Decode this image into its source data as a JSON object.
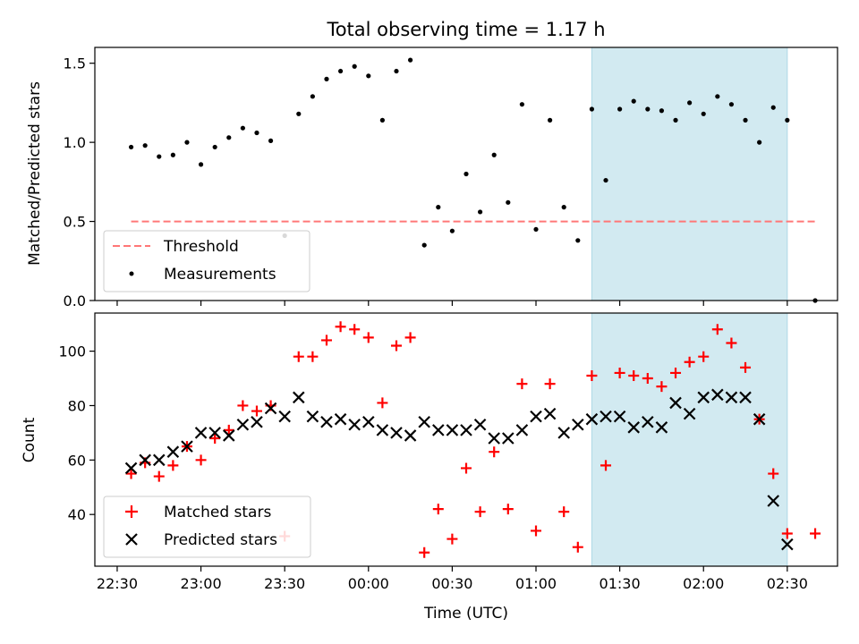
{
  "chart_data": {
    "title": "Total observing time = 1.17 h",
    "xlabel": "Time (UTC)",
    "x_ticks": [
      "22:30",
      "23:00",
      "23:30",
      "00:00",
      "00:30",
      "01:00",
      "01:30",
      "02:00",
      "02:30"
    ],
    "x_tick_hours": [
      22.5,
      23.0,
      23.5,
      24.0,
      24.5,
      25.0,
      25.5,
      26.0,
      26.5
    ],
    "xlim": [
      "22:22",
      "02:48"
    ],
    "highlight": {
      "start": "01:20",
      "end": "02:30",
      "color": "#add8e6"
    },
    "times": [
      "22:35",
      "22:40",
      "22:45",
      "22:50",
      "22:55",
      "23:00",
      "23:05",
      "23:10",
      "23:15",
      "23:20",
      "23:25",
      "23:30",
      "23:35",
      "23:40",
      "23:45",
      "23:50",
      "23:55",
      "00:00",
      "00:05",
      "00:10",
      "00:15",
      "00:20",
      "00:25",
      "00:30",
      "00:35",
      "00:40",
      "00:45",
      "00:50",
      "00:55",
      "01:00",
      "01:05",
      "01:10",
      "01:15",
      "01:20",
      "01:25",
      "01:30",
      "01:35",
      "01:40",
      "01:45",
      "01:50",
      "01:55",
      "02:00",
      "02:05",
      "02:10",
      "02:15",
      "02:20",
      "02:25",
      "02:30",
      "02:40"
    ],
    "panels": [
      {
        "type": "scatter",
        "ylabel": "Matched/Predicted stars",
        "ylim": [
          0,
          1.6
        ],
        "yticks": [
          "0.0",
          "0.5",
          "1.0",
          "1.5"
        ],
        "ytick_values": [
          0,
          0.5,
          1.0,
          1.5
        ],
        "threshold": {
          "value": 0.5,
          "x_range": [
            "22:35",
            "02:40"
          ],
          "color": "#ff7777",
          "label": "Threshold"
        },
        "legend": [
          "Threshold",
          "Measurements"
        ],
        "legend_position": "lower-left",
        "series": [
          {
            "name": "Measurements",
            "marker": "dot",
            "color": "#000000",
            "values": [
              0.97,
              0.98,
              0.91,
              0.92,
              1.0,
              0.86,
              0.97,
              1.03,
              1.09,
              1.06,
              1.01,
              0.41,
              1.18,
              1.29,
              1.4,
              1.45,
              1.48,
              1.42,
              1.14,
              1.45,
              1.52,
              0.35,
              0.59,
              0.44,
              0.8,
              0.56,
              0.92,
              0.62,
              1.24,
              0.45,
              1.14,
              0.59,
              0.38,
              1.21,
              0.76,
              1.21,
              1.26,
              1.21,
              1.2,
              1.14,
              1.25,
              1.18,
              1.29,
              1.24,
              1.14,
              1.0,
              1.22,
              1.14,
              0.0
            ]
          }
        ]
      },
      {
        "type": "scatter",
        "ylabel": "Count",
        "ylim": [
          21,
          114
        ],
        "yticks": [
          "40",
          "60",
          "80",
          "100"
        ],
        "ytick_values": [
          40,
          60,
          80,
          100
        ],
        "legend": [
          "Matched stars",
          "Predicted stars"
        ],
        "legend_position": "lower-left",
        "series": [
          {
            "name": "Matched stars",
            "marker": "plus",
            "color": "#ff0000",
            "values": [
              55,
              59,
              54,
              58,
              65,
              60,
              68,
              71,
              80,
              78,
              80,
              32,
              98,
              98,
              104,
              109,
              108,
              105,
              81,
              102,
              105,
              26,
              42,
              31,
              57,
              41,
              63,
              42,
              88,
              34,
              88,
              41,
              28,
              91,
              58,
              92,
              91,
              90,
              87,
              92,
              96,
              98,
              108,
              103,
              94,
              75,
              55,
              33,
              33
            ]
          },
          {
            "name": "Predicted stars",
            "marker": "x",
            "color": "#000000",
            "values": [
              57,
              60,
              60,
              63,
              65,
              70,
              70,
              69,
              73,
              74,
              79,
              76,
              83,
              76,
              74,
              75,
              73,
              74,
              71,
              70,
              69,
              74,
              71,
              71,
              71,
              73,
              68,
              68,
              71,
              76,
              77,
              70,
              73,
              75,
              76,
              76,
              72,
              74,
              72,
              81,
              77,
              83,
              84,
              83,
              83,
              75,
              45,
              29,
              null
            ]
          }
        ]
      }
    ]
  }
}
